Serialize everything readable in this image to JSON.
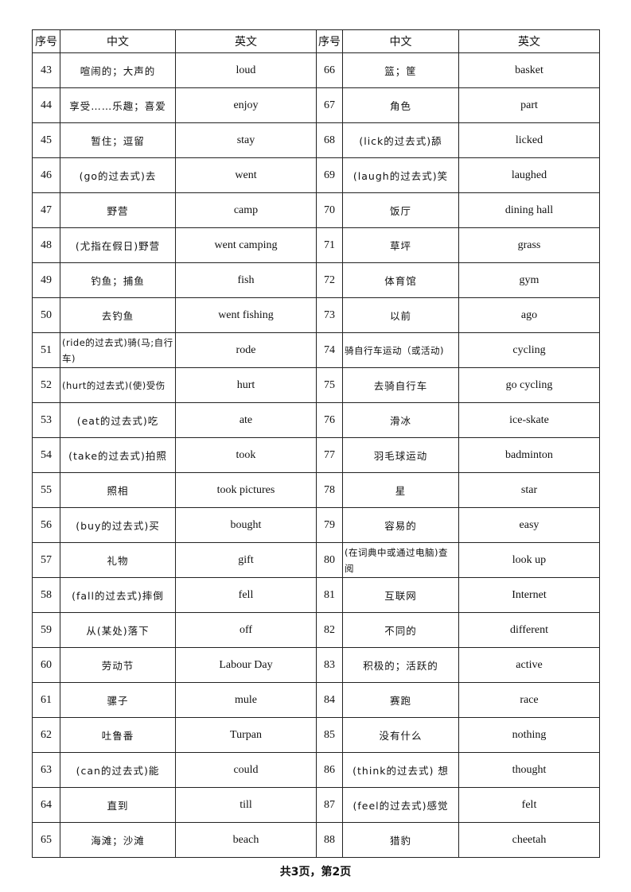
{
  "headers": [
    "序号",
    "中文",
    "英文",
    "序号",
    "中文",
    "英文"
  ],
  "rows": [
    {
      "left": {
        "no": "43",
        "zh": "喧闹的；大声的",
        "en": "loud"
      },
      "right": {
        "no": "66",
        "zh": "篮；筐",
        "en": "basket"
      }
    },
    {
      "left": {
        "no": "44",
        "zh": "享受……乐趣；喜爱",
        "en": "enjoy"
      },
      "right": {
        "no": "67",
        "zh": "角色",
        "en": "part"
      }
    },
    {
      "left": {
        "no": "45",
        "zh": "暂住；逗留",
        "en": "stay"
      },
      "right": {
        "no": "68",
        "zh": "(lick的过去式)舔",
        "en": "licked"
      }
    },
    {
      "left": {
        "no": "46",
        "zh": "(go的过去式)去",
        "en": "went"
      },
      "right": {
        "no": "69",
        "zh": "(laugh的过去式)笑",
        "en": "laughed"
      }
    },
    {
      "left": {
        "no": "47",
        "zh": "野营",
        "en": "camp"
      },
      "right": {
        "no": "70",
        "zh": "饭厅",
        "en": "dining hall"
      }
    },
    {
      "left": {
        "no": "48",
        "zh": "(尤指在假日)野营",
        "en": "went camping"
      },
      "right": {
        "no": "71",
        "zh": "草坪",
        "en": "grass"
      }
    },
    {
      "left": {
        "no": "49",
        "zh": "钓鱼；捕鱼",
        "en": "fish"
      },
      "right": {
        "no": "72",
        "zh": "体育馆",
        "en": "gym"
      }
    },
    {
      "left": {
        "no": "50",
        "zh": "去钓鱼",
        "en": "went fishing"
      },
      "right": {
        "no": "73",
        "zh": "以前",
        "en": "ago"
      }
    },
    {
      "left": {
        "no": "51",
        "zh": "(ride的过去式)骑(马;自行车)",
        "en": "rode"
      },
      "right": {
        "no": "74",
        "zh": "骑自行车运动（或活动)",
        "en": "cycling"
      }
    },
    {
      "left": {
        "no": "52",
        "zh": "(hurt的过去式)(使)受伤",
        "en": "hurt"
      },
      "right": {
        "no": "75",
        "zh": "去骑自行车",
        "en": "go cycling"
      }
    },
    {
      "left": {
        "no": "53",
        "zh": "(eat的过去式)吃",
        "en": "ate"
      },
      "right": {
        "no": "76",
        "zh": "滑冰",
        "en": "ice-skate"
      }
    },
    {
      "left": {
        "no": "54",
        "zh": "(take的过去式)拍照",
        "en": "took"
      },
      "right": {
        "no": "77",
        "zh": "羽毛球运动",
        "en": "badminton"
      }
    },
    {
      "left": {
        "no": "55",
        "zh": "照相",
        "en": "took pictures"
      },
      "right": {
        "no": "78",
        "zh": "星",
        "en": "star"
      }
    },
    {
      "left": {
        "no": "56",
        "zh": "(buy的过去式)买",
        "en": "bought"
      },
      "right": {
        "no": "79",
        "zh": "容易的",
        "en": "easy"
      }
    },
    {
      "left": {
        "no": "57",
        "zh": "礼物",
        "en": "gift"
      },
      "right": {
        "no": "80",
        "zh": "(在词典中或通过电脑)查阅",
        "en": "look up"
      }
    },
    {
      "left": {
        "no": "58",
        "zh": "(fall的过去式)摔倒",
        "en": "fell"
      },
      "right": {
        "no": "81",
        "zh": "互联网",
        "en": "Internet"
      }
    },
    {
      "left": {
        "no": "59",
        "zh": "从(某处)落下",
        "en": "off"
      },
      "right": {
        "no": "82",
        "zh": "不同的",
        "en": "different"
      }
    },
    {
      "left": {
        "no": "60",
        "zh": "劳动节",
        "en": "Labour Day"
      },
      "right": {
        "no": "83",
        "zh": "积极的；活跃的",
        "en": "active"
      }
    },
    {
      "left": {
        "no": "61",
        "zh": "骡子",
        "en": "mule"
      },
      "right": {
        "no": "84",
        "zh": "赛跑",
        "en": "race"
      }
    },
    {
      "left": {
        "no": "62",
        "zh": "吐鲁番",
        "en": "Turpan"
      },
      "right": {
        "no": "85",
        "zh": "没有什么",
        "en": "nothing"
      }
    },
    {
      "left": {
        "no": "63",
        "zh": "(can的过去式)能",
        "en": "could"
      },
      "right": {
        "no": "86",
        "zh": "(think的过去式) 想",
        "en": "thought"
      }
    },
    {
      "left": {
        "no": "64",
        "zh": "直到",
        "en": "till"
      },
      "right": {
        "no": "87",
        "zh": "(feel的过去式)感觉",
        "en": "felt"
      }
    },
    {
      "left": {
        "no": "65",
        "zh": "海滩；沙滩",
        "en": "beach"
      },
      "right": {
        "no": "88",
        "zh": "猎豹",
        "en": "cheetah"
      }
    }
  ],
  "footer": "共3页，第2页"
}
